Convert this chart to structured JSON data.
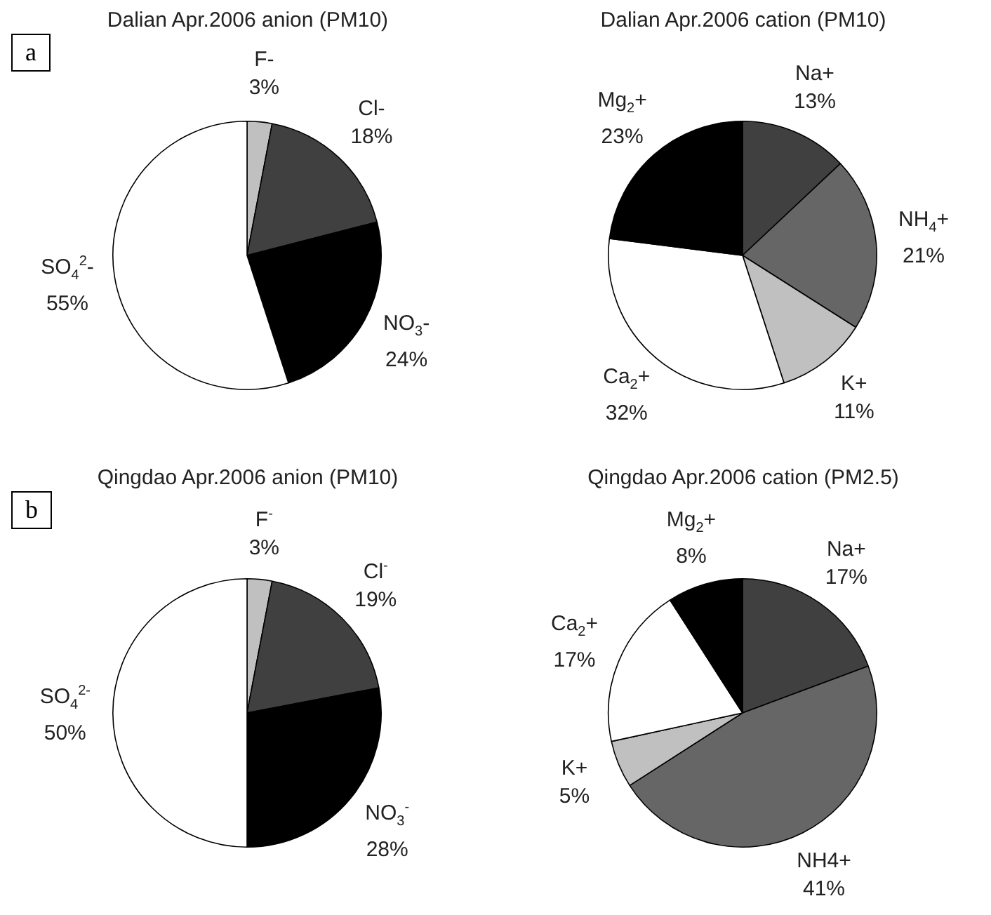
{
  "chart_data": [
    {
      "type": "pie",
      "title": "Dalian Apr.2006 anion (PM10)",
      "annotations": [
        "a"
      ],
      "categories": [
        "F-",
        "Cl-",
        "NO$_{3}$-",
        "SO$_{4}$$^{2}$-"
      ],
      "values": [
        3,
        18,
        24,
        55
      ],
      "value_labels": [
        "3%",
        "18%",
        "24%",
        "55%"
      ],
      "colors": [
        "#c0c0c0",
        "#404040",
        "#000000",
        "#ffffff"
      ],
      "legend": false
    },
    {
      "type": "pie",
      "title": "Dalian Apr.2006 cation (PM10)",
      "categories": [
        "Na+",
        "NH$_{4}$+",
        "K+",
        "Ca$_{2}$+",
        "Mg$_{2}$+"
      ],
      "values": [
        13,
        21,
        11,
        32,
        23
      ],
      "value_labels": [
        "13%",
        "21%",
        "11%",
        "32%",
        "23%"
      ],
      "colors": [
        "#404040",
        "#666666",
        "#c0c0c0",
        "#ffffff",
        "#000000"
      ],
      "legend": false
    },
    {
      "type": "pie",
      "title": "Qingdao  Apr.2006 anion (PM10)",
      "annotations": [
        "b"
      ],
      "categories": [
        "F$^{-}$",
        "Cl$^{-}$",
        "NO$_{3}$$^{-}$",
        "SO$_{4}$$^{2-}$"
      ],
      "values": [
        3,
        19,
        28,
        50
      ],
      "value_labels": [
        "3%",
        "19%",
        "28%",
        "50%"
      ],
      "colors": [
        "#c0c0c0",
        "#404040",
        "#000000",
        "#ffffff"
      ],
      "legend": false
    },
    {
      "type": "pie",
      "title": "Qingdao Apr.2006 cation (PM2.5)",
      "categories": [
        "Na+",
        "NH4+",
        "K+",
        "Ca$_{2}$+",
        "Mg$_{2}$+"
      ],
      "values": [
        17,
        41,
        5,
        17,
        8
      ],
      "value_labels": [
        "17%",
        "41%",
        "5%",
        "17%",
        "8%"
      ],
      "colors": [
        "#404040",
        "#666666",
        "#c0c0c0",
        "#ffffff",
        "#000000"
      ],
      "legend": false
    }
  ]
}
